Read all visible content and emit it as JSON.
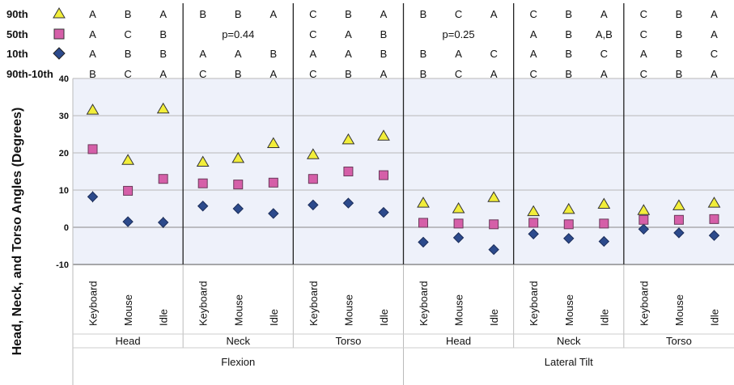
{
  "chart_data": {
    "type": "scatter",
    "ylabel": "Head, Neck, and Torso Angles (Degrees)",
    "ylim": [
      -10,
      40
    ],
    "yticks": [
      -10,
      0,
      10,
      20,
      30,
      40
    ],
    "grid": true,
    "legend": [
      {
        "label": "90th",
        "marker": "triangle",
        "color": "#f2ee3a"
      },
      {
        "label": "50th",
        "marker": "square",
        "color": "#d55fa8"
      },
      {
        "label": "10th",
        "marker": "diamond",
        "color": "#2c4a8c"
      },
      {
        "label": "90th-10th",
        "marker": "none",
        "color": ""
      }
    ],
    "categories": [
      "Keyboard",
      "Mouse",
      "Idle"
    ],
    "groups": [
      {
        "name": "Head",
        "parent": "Flexion",
        "letters": [
          [
            "A",
            "B",
            "A"
          ],
          [
            "A",
            "C",
            "B"
          ],
          [
            "A",
            "B",
            "B"
          ],
          [
            "B",
            "C",
            "A"
          ]
        ],
        "p": "",
        "p90": [
          31.5,
          18,
          31.8
        ],
        "p50": [
          21,
          9.8,
          13
        ],
        "p10": [
          8.2,
          1.5,
          1.3
        ],
        "err10": [
          1.5,
          1,
          1.5
        ],
        "err50": [
          1,
          0,
          0
        ],
        "err90": [
          0.8,
          0.5,
          0.8
        ]
      },
      {
        "name": "Neck",
        "parent": "Flexion",
        "letters": [
          [
            "B",
            "B",
            "A"
          ],
          [
            "",
            "",
            ""
          ],
          [
            "A",
            "A",
            "B"
          ],
          [
            "C",
            "B",
            "A"
          ]
        ],
        "p": "p=0.44",
        "p90": [
          17.5,
          18.5,
          22.5
        ],
        "p50": [
          11.8,
          11.5,
          12
        ],
        "p10": [
          5.7,
          5,
          3.7
        ],
        "err10": [
          0.8,
          0.8,
          1
        ],
        "err50": [
          0,
          0,
          0
        ],
        "err90": [
          1,
          1,
          1
        ]
      },
      {
        "name": "Torso",
        "parent": "Flexion",
        "letters": [
          [
            "C",
            "B",
            "A"
          ],
          [
            "C",
            "A",
            "B"
          ],
          [
            "A",
            "A",
            "B"
          ],
          [
            "C",
            "B",
            "A"
          ]
        ],
        "p": "",
        "p90": [
          19.5,
          23.5,
          24.5
        ],
        "p50": [
          13,
          15,
          14
        ],
        "p10": [
          6,
          6.5,
          4
        ],
        "err10": [
          0.8,
          1,
          0.8
        ],
        "err50": [
          0,
          0.5,
          0.5
        ],
        "err90": [
          1,
          1,
          1
        ]
      },
      {
        "name": "Head",
        "parent": "Lateral Tilt",
        "letters": [
          [
            "B",
            "C",
            "A"
          ],
          [
            "",
            "",
            ""
          ],
          [
            "B",
            "A",
            "C"
          ],
          [
            "B",
            "C",
            "A"
          ]
        ],
        "p": "p=0.25",
        "p90": [
          6.5,
          5,
          8
        ],
        "p50": [
          1.2,
          1,
          0.8
        ],
        "p10": [
          -4,
          -2.8,
          -6
        ],
        "err10": [
          0.5,
          0.5,
          0.5
        ],
        "err50": [
          0,
          0,
          0
        ],
        "err90": [
          0.5,
          0.5,
          0.5
        ]
      },
      {
        "name": "Neck",
        "parent": "Lateral Tilt",
        "letters": [
          [
            "C",
            "B",
            "A"
          ],
          [
            "A",
            "B",
            "A,B"
          ],
          [
            "A",
            "B",
            "C"
          ],
          [
            "C",
            "B",
            "A"
          ]
        ],
        "p": "",
        "p90": [
          4.2,
          4.8,
          6.2
        ],
        "p50": [
          1.2,
          0.8,
          1
        ],
        "p10": [
          -1.8,
          -3,
          -3.8
        ],
        "err10": [
          0,
          0,
          0
        ],
        "err50": [
          0,
          0,
          0
        ],
        "err90": [
          0.5,
          0.5,
          0.5
        ]
      },
      {
        "name": "Torso",
        "parent": "Lateral Tilt",
        "letters": [
          [
            "C",
            "B",
            "A"
          ],
          [
            "C",
            "B",
            "A"
          ],
          [
            "A",
            "B",
            "C"
          ],
          [
            "C",
            "B",
            "A"
          ]
        ],
        "p": "",
        "p90": [
          4.5,
          5.8,
          6.5
        ],
        "p50": [
          2,
          2,
          2.2
        ],
        "p10": [
          -0.5,
          -1.5,
          -2.2
        ],
        "err10": [
          0,
          0,
          0
        ],
        "err50": [
          0,
          0,
          0
        ],
        "err90": [
          0.5,
          0.5,
          0.5
        ]
      }
    ],
    "super_groups": [
      "Flexion",
      "Lateral Tilt"
    ]
  }
}
